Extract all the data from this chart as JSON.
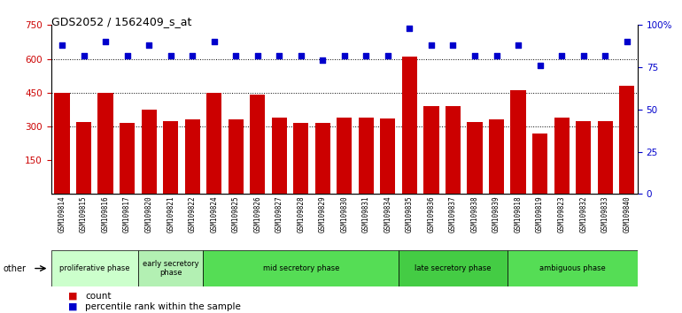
{
  "title": "GDS2052 / 1562409_s_at",
  "samples": [
    "GSM109814",
    "GSM109815",
    "GSM109816",
    "GSM109817",
    "GSM109820",
    "GSM109821",
    "GSM109822",
    "GSM109824",
    "GSM109825",
    "GSM109826",
    "GSM109827",
    "GSM109828",
    "GSM109829",
    "GSM109830",
    "GSM109831",
    "GSM109834",
    "GSM109835",
    "GSM109836",
    "GSM109837",
    "GSM109838",
    "GSM109839",
    "GSM109818",
    "GSM109819",
    "GSM109823",
    "GSM109832",
    "GSM109833",
    "GSM109840"
  ],
  "counts": [
    450,
    320,
    450,
    315,
    375,
    325,
    330,
    450,
    330,
    440,
    340,
    315,
    315,
    340,
    340,
    335,
    610,
    390,
    390,
    320,
    330,
    460,
    270,
    340,
    325,
    325,
    480
  ],
  "percentiles": [
    88,
    82,
    90,
    82,
    88,
    82,
    82,
    90,
    82,
    82,
    82,
    82,
    79,
    82,
    82,
    82,
    98,
    88,
    88,
    82,
    82,
    88,
    76,
    82,
    82,
    82,
    90
  ],
  "bar_color": "#cc0000",
  "dot_color": "#0000cc",
  "ylim_left": [
    0,
    750
  ],
  "ylim_right": [
    0,
    100
  ],
  "yticks_left": [
    150,
    300,
    450,
    600,
    750
  ],
  "ytick_labels_left": [
    "150",
    "300",
    "450",
    "600",
    "750"
  ],
  "yticks_right": [
    0,
    25,
    50,
    75,
    100
  ],
  "ytick_labels_right": [
    "0",
    "25",
    "50",
    "75",
    "100%"
  ],
  "grid_values": [
    300,
    450,
    600
  ],
  "phases": [
    {
      "label": "proliferative phase",
      "start": 0,
      "end": 4,
      "color": "#ccffcc"
    },
    {
      "label": "early secretory\nphase",
      "start": 4,
      "end": 7,
      "color": "#b3f0b3"
    },
    {
      "label": "mid secretory phase",
      "start": 7,
      "end": 16,
      "color": "#55dd55"
    },
    {
      "label": "late secretory phase",
      "start": 16,
      "end": 21,
      "color": "#44cc44"
    },
    {
      "label": "ambiguous phase",
      "start": 21,
      "end": 27,
      "color": "#55dd55"
    }
  ],
  "other_label": "other",
  "background_color": "#ffffff",
  "tick_area_color": "#d8d8d8"
}
